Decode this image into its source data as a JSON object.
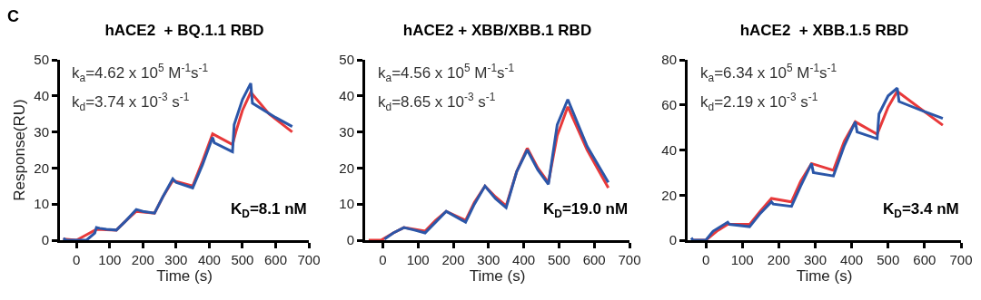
{
  "chart_data": [
    {
      "type": "line",
      "title": "hACE2  + BQ.1.1 RBD",
      "xlabel": "Time (s)",
      "ylabel": "Response(RU)",
      "annotations": [
        "C",
        "k$_{a}$=4.62 x 10$^{5}$ M$^{-1}$s$^{-1}$",
        "k$_{d}$=3.74 x 10$^{-3}$ s$^{-1}$",
        "K$_{D}$=8.1 nM"
      ],
      "xlim": [
        -50,
        700
      ],
      "xticks": [
        0,
        100,
        200,
        300,
        400,
        500,
        600,
        700
      ],
      "ylim": [
        0,
        50
      ],
      "yticks": [
        0,
        10,
        20,
        30,
        40,
        50
      ],
      "marker": "none",
      "line_style": "solid",
      "series": [
        {
          "color": "#e8393a",
          "x": [
            -40,
            0,
            30,
            60,
            90,
            120,
            150,
            180,
            235,
            260,
            290,
            350,
            380,
            410,
            470,
            480,
            500,
            525,
            580,
            650
          ],
          "values": [
            0.3,
            0,
            1.5,
            3,
            2.9,
            2.8,
            5.5,
            8,
            7.5,
            12,
            16.5,
            15,
            22,
            29.5,
            26.5,
            30,
            36,
            41,
            35,
            30
          ]
        },
        {
          "color": "#2b56a8",
          "x": [
            -40,
            -30,
            0,
            30,
            55,
            60,
            70,
            90,
            120,
            150,
            180,
            200,
            235,
            260,
            290,
            300,
            350,
            380,
            410,
            415,
            470,
            475,
            500,
            525,
            530,
            600,
            650
          ],
          "values": [
            0.5,
            0,
            0,
            0,
            2,
            3.5,
            3.3,
            3,
            2.8,
            5.5,
            8.5,
            8,
            7.5,
            12,
            17,
            16,
            14.5,
            21,
            28.5,
            27,
            24.5,
            32,
            39,
            43.5,
            38,
            34,
            31.5
          ]
        }
      ]
    },
    {
      "type": "line",
      "title": "hACE2 + XBB/XBB.1 RBD",
      "xlabel": "Time (s)",
      "annotations": [
        "k$_{a}$=4.56 x 10$^{5}$ M$^{-1}$s$^{-1}$",
        "k$_{d}$=8.65 x 10$^{-3}$ s$^{-1}$",
        "K$_{D}$=19.0 nM"
      ],
      "xlim": [
        -50,
        700
      ],
      "xticks": [
        0,
        100,
        200,
        300,
        400,
        500,
        600,
        700
      ],
      "ylim": [
        0,
        50
      ],
      "yticks": [
        0,
        10,
        20,
        30,
        40,
        50
      ],
      "marker": "none",
      "line_style": "solid",
      "series": [
        {
          "color": "#e8393a",
          "x": [
            -40,
            -5,
            30,
            60,
            90,
            120,
            150,
            180,
            235,
            260,
            290,
            320,
            350,
            380,
            410,
            440,
            470,
            495,
            525,
            580,
            640
          ],
          "values": [
            0,
            0,
            2,
            3.5,
            3,
            2.5,
            5.5,
            8,
            5.5,
            10.5,
            15,
            12,
            9.5,
            19,
            25.5,
            20,
            16,
            29,
            37,
            25,
            14.5
          ]
        },
        {
          "color": "#2b56a8",
          "x": [
            5,
            30,
            60,
            90,
            120,
            150,
            180,
            235,
            260,
            290,
            320,
            350,
            380,
            410,
            440,
            470,
            495,
            525,
            580,
            640
          ],
          "values": [
            0.3,
            2,
            3.5,
            2.8,
            2,
            5,
            8,
            5,
            10,
            15,
            11.5,
            9,
            19,
            25,
            19.5,
            15.5,
            32,
            39,
            26,
            16
          ]
        }
      ]
    },
    {
      "type": "line",
      "title": "hACE2  + XBB.1.5 RBD",
      "xlabel": "Time (s)",
      "annotations": [
        "k$_{a}$=6.34 x 10$^{5}$ M$^{-1}$s$^{-1}$",
        "k$_{d}$=2.19 x 10$^{-3}$ s$^{-1}$",
        "K$_{D}$=3.4 nM"
      ],
      "xlim": [
        -50,
        700
      ],
      "xticks": [
        0,
        100,
        200,
        300,
        400,
        500,
        600,
        700
      ],
      "ylim": [
        0,
        80
      ],
      "yticks": [
        0,
        20,
        40,
        60,
        80
      ],
      "marker": "none",
      "line_style": "solid",
      "series": [
        {
          "color": "#e8393a",
          "x": [
            -40,
            0,
            30,
            60,
            120,
            150,
            180,
            235,
            260,
            290,
            350,
            380,
            410,
            470,
            500,
            525,
            650
          ],
          "values": [
            0,
            0,
            4,
            7,
            7,
            13,
            18.5,
            17,
            26,
            34,
            31,
            44,
            52.5,
            47,
            59,
            66,
            51
          ]
        },
        {
          "color": "#2b56a8",
          "x": [
            -40,
            -35,
            0,
            20,
            60,
            65,
            120,
            150,
            180,
            185,
            235,
            260,
            290,
            295,
            350,
            380,
            410,
            415,
            470,
            475,
            500,
            525,
            530,
            600,
            650
          ],
          "values": [
            1,
            0,
            0,
            4,
            8,
            7,
            6,
            12,
            17,
            16,
            15,
            24,
            34,
            30,
            28.5,
            42,
            52.5,
            48,
            45,
            56,
            64,
            67.5,
            61.5,
            57,
            54
          ]
        }
      ]
    }
  ]
}
